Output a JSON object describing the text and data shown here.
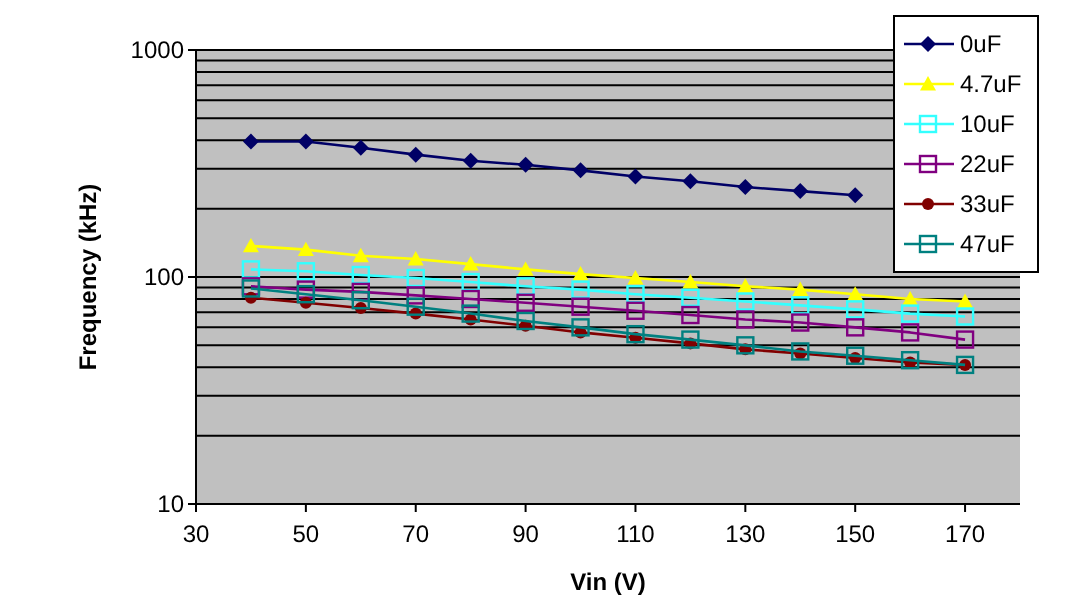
{
  "chart_data": {
    "type": "line",
    "xlabel": "Vin (V)",
    "ylabel": "Frequency (kHz)",
    "x": [
      40,
      50,
      60,
      70,
      80,
      90,
      100,
      110,
      120,
      130,
      140,
      150,
      160,
      170
    ],
    "series": [
      {
        "name": "0uF",
        "color": "#000066",
        "marker": "diamond",
        "values": [
          395,
          395,
          371,
          346,
          325,
          312,
          295,
          277,
          264,
          249,
          239,
          229,
          null,
          null
        ]
      },
      {
        "name": "4.7uF",
        "color": "#ffff00",
        "marker": "triangle",
        "values": [
          137,
          132,
          124,
          120,
          114,
          108,
          103,
          99,
          95,
          91,
          88,
          84,
          80,
          78
        ]
      },
      {
        "name": "10uF",
        "color": "#33ffff",
        "marker": "square",
        "values": [
          108,
          106,
          102,
          99,
          95,
          91,
          88,
          84,
          81,
          78,
          75,
          72,
          69,
          67
        ]
      },
      {
        "name": "22uF",
        "color": "#800080",
        "marker": "square",
        "values": [
          91,
          88,
          86,
          83,
          80,
          77,
          74,
          71,
          68,
          65,
          63,
          60,
          57,
          53
        ]
      },
      {
        "name": "33uF",
        "color": "#800000",
        "marker": "circle",
        "values": [
          81,
          77,
          73,
          69,
          65,
          61,
          57,
          54,
          51,
          48,
          46,
          44,
          42,
          41
        ]
      },
      {
        "name": "47uF",
        "color": "#008080",
        "marker": "square",
        "values": [
          89,
          84,
          79,
          74,
          69,
          64,
          60,
          56,
          53,
          50,
          47,
          45,
          43,
          41
        ]
      }
    ],
    "log": "y",
    "xlim": [
      30,
      180
    ],
    "xticks": [
      30,
      50,
      70,
      90,
      110,
      130,
      150,
      170
    ],
    "ylim": [
      10,
      1000
    ],
    "yticks": [
      10,
      {
        "value": 20,
        "label": null
      },
      {
        "value": 30,
        "label": null
      },
      {
        "value": 40,
        "label": null
      },
      {
        "value": 50,
        "label": null
      },
      {
        "value": 60,
        "label": null
      },
      {
        "value": 70,
        "label": null
      },
      {
        "value": 80,
        "label": null
      },
      {
        "value": 90,
        "label": null
      },
      100,
      {
        "value": 200,
        "label": null
      },
      {
        "value": 300,
        "label": null
      },
      {
        "value": 400,
        "label": null
      },
      {
        "value": 500,
        "label": null
      },
      {
        "value": 600,
        "label": null
      },
      {
        "value": 700,
        "label": null
      },
      {
        "value": 800,
        "label": null
      },
      {
        "value": 900,
        "label": null
      },
      1000
    ],
    "grid": "y",
    "legend": "top right"
  }
}
